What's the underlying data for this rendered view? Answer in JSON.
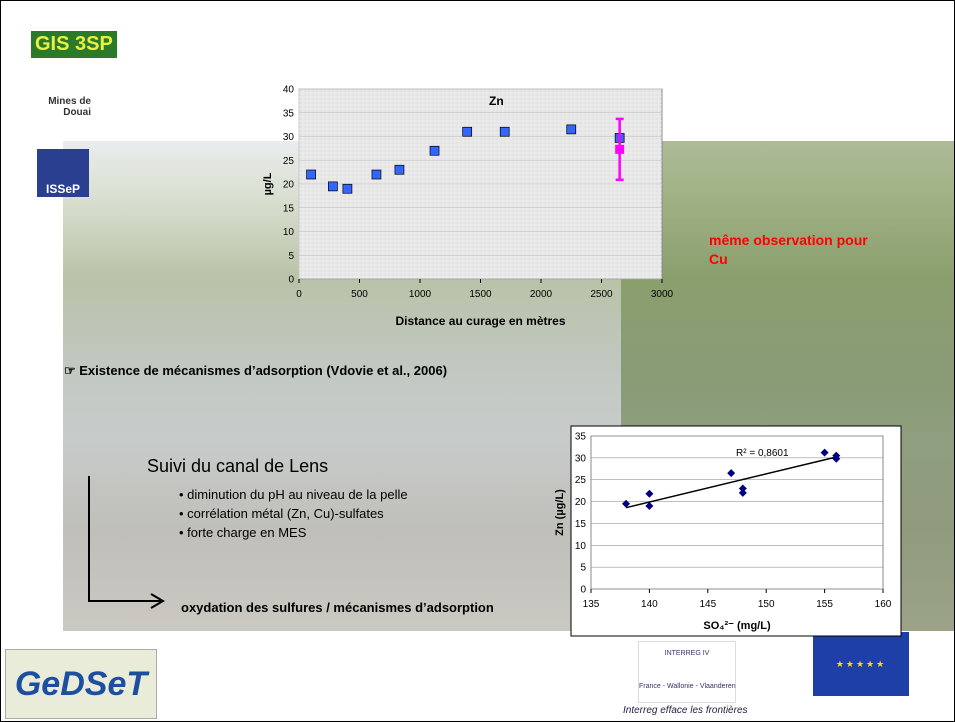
{
  "header": {
    "logo": "GIS 3SP",
    "school": "Mines de Douai",
    "institute": "ISSeP"
  },
  "chart_data": [
    {
      "type": "scatter",
      "title": "Zn",
      "y_label": "µg/L",
      "x_label": "Distance au curage en mètres",
      "xlim": [
        0,
        3000
      ],
      "xticks": [
        0,
        500,
        1000,
        1500,
        2000,
        2500,
        3000
      ],
      "ylim": [
        0,
        40
      ],
      "yticks": [
        0,
        5,
        10,
        15,
        20,
        25,
        30,
        35,
        40
      ],
      "grid": true,
      "series": [
        {
          "color": "#3366ff",
          "marker": "square",
          "x": [
            100,
            280,
            400,
            640,
            830,
            1120,
            1390,
            1700,
            2250,
            2650
          ],
          "values": [
            22,
            19.5,
            19,
            22,
            23,
            27,
            31,
            31,
            31.5,
            29.7
          ]
        },
        {
          "color": "#ff00ff",
          "marker": "square",
          "x": [
            2650
          ],
          "values": [
            27.3
          ],
          "errors": [
            6.4
          ]
        }
      ]
    },
    {
      "type": "scatter",
      "annotation": "R² = 0,8601",
      "y_label": "Zn (µg/L)",
      "x_label": "SO₄²⁻ (mg/L)",
      "xlim": [
        135,
        160
      ],
      "xticks": [
        135,
        140,
        145,
        150,
        155,
        160
      ],
      "ylim": [
        0,
        35
      ],
      "yticks": [
        0,
        5,
        10,
        15,
        20,
        25,
        30,
        35
      ],
      "grid": true,
      "series": [
        {
          "color": "#000080",
          "marker": "diamond",
          "x": [
            138,
            140,
            140,
            147,
            148,
            148,
            155,
            156,
            156
          ],
          "values": [
            19.5,
            21.8,
            19,
            26.5,
            23,
            22,
            31.2,
            30.5,
            29.8
          ]
        }
      ],
      "trendline": {
        "color": "#000000",
        "x": [
          138,
          156
        ],
        "values": [
          18.6,
          30.2
        ]
      }
    }
  ],
  "slide": {
    "note": "même observation pour Cu",
    "finding": "☞ Existence de mécanismes d’adsorption (Vdovie et al., 2006)",
    "section": "Suivi du canal de Lens",
    "bullets": [
      "• diminution du pH au niveau de la pelle",
      "• corrélation métal (Zn, Cu)-sulfates",
      "• forte charge en MES"
    ],
    "conclusion": "oxydation des sulfures / mécanismes d’adsorption"
  },
  "footer": {
    "logo": "GeDSeT",
    "program": "INTERREG IV",
    "regions": "France - Wallonie - Vlaanderen",
    "slogan": "Interreg efface les frontières"
  }
}
